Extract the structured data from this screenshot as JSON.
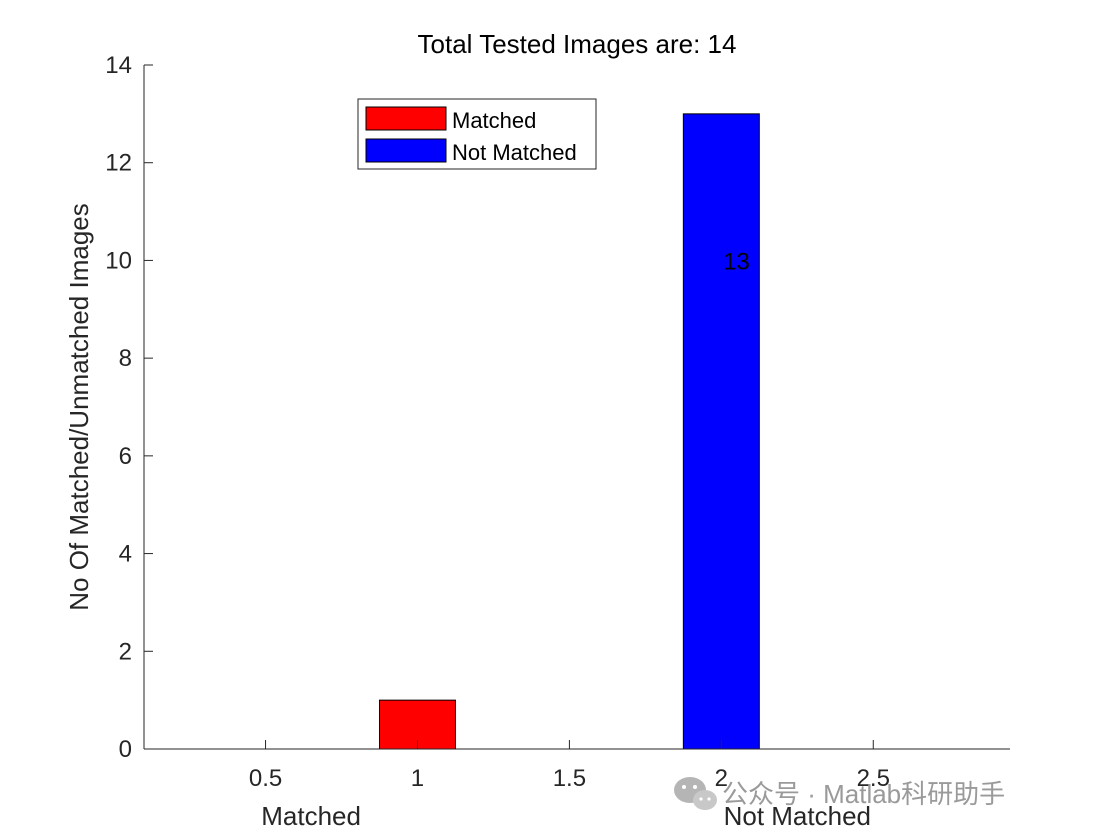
{
  "chart_data": {
    "type": "bar",
    "title": "Total Tested Images are: 14",
    "ylabel": "No Of Matched/Unmatched Images",
    "xlabel": "",
    "x": [
      1,
      2
    ],
    "values": [
      1,
      13
    ],
    "colors": [
      "#ff0000",
      "#0000ff"
    ],
    "bar_width": 0.25,
    "xlim": [
      0.1,
      2.95
    ],
    "ylim": [
      0,
      14
    ],
    "xticks": [
      0.5,
      1,
      1.5,
      2,
      2.5
    ],
    "xtick_labels": [
      "0.5",
      "1",
      "1.5",
      "2",
      "2.5"
    ],
    "yticks": [
      0,
      2,
      4,
      6,
      8,
      10,
      12,
      14
    ],
    "ytick_labels": [
      "0",
      "2",
      "4",
      "6",
      "8",
      "10",
      "12",
      "14"
    ],
    "x_category_labels": [
      {
        "x": 0.65,
        "text": "Matched"
      },
      {
        "x": 2.25,
        "text": "Not Matched"
      }
    ],
    "data_labels": [
      {
        "x": 2.05,
        "y": 10,
        "text": "13"
      }
    ],
    "legend": {
      "placement": "top-center",
      "entries": [
        {
          "label": "Matched",
          "color": "#ff0000"
        },
        {
          "label": "Not Matched",
          "color": "#0000ff"
        }
      ]
    },
    "grid": false
  },
  "watermark": {
    "text": "公众号 · Matlab科研助手",
    "icon": "wechat-icon"
  }
}
